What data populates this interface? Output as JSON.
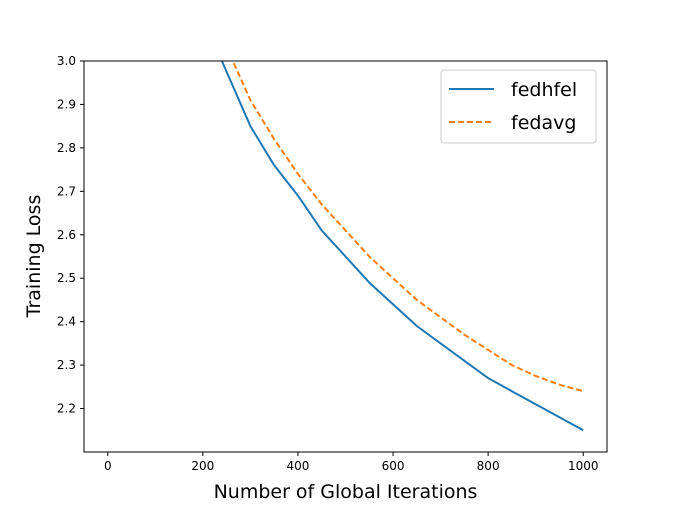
{
  "chart_data": {
    "type": "line",
    "xlabel": "Number of Global Iterations",
    "ylabel": "Training Loss",
    "xlim": [
      -50,
      1050
    ],
    "ylim": [
      2.1,
      3.0
    ],
    "xticks": [
      0,
      200,
      400,
      600,
      800,
      1000
    ],
    "yticks": [
      2.2,
      2.3,
      2.4,
      2.5,
      2.6,
      2.7,
      2.8,
      2.9,
      3.0
    ],
    "xtick_labels": [
      "0",
      "200",
      "400",
      "600",
      "800",
      "1000"
    ],
    "ytick_labels": [
      "2.2",
      "2.3",
      "2.4",
      "2.5",
      "2.6",
      "2.7",
      "2.8",
      "2.9",
      "3.0"
    ],
    "grid": false,
    "legend_position": "top-right",
    "series": [
      {
        "name": "fedhfel",
        "color": "#1f77b4",
        "style": "solid",
        "x": [
          240,
          300,
          350,
          400,
          450,
          500,
          550,
          600,
          650,
          700,
          750,
          800,
          850,
          900,
          950,
          1000
        ],
        "y": [
          3.0,
          2.85,
          2.76,
          2.69,
          2.61,
          2.55,
          2.49,
          2.44,
          2.39,
          2.35,
          2.31,
          2.27,
          2.24,
          2.21,
          2.18,
          2.15
        ]
      },
      {
        "name": "fedavg",
        "color": "#ff7f0e",
        "style": "dashed",
        "x": [
          265,
          300,
          350,
          400,
          450,
          500,
          550,
          600,
          650,
          700,
          750,
          800,
          850,
          900,
          950,
          1000
        ],
        "y": [
          2.995,
          2.91,
          2.82,
          2.74,
          2.67,
          2.61,
          2.55,
          2.5,
          2.45,
          2.41,
          2.37,
          2.335,
          2.3,
          2.275,
          2.255,
          2.24
        ]
      }
    ]
  }
}
